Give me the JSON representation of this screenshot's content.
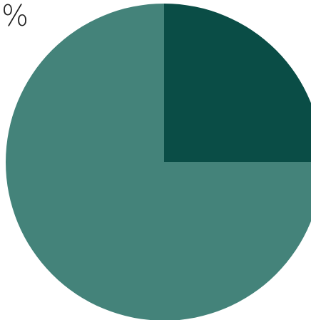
{
  "chart_data": {
    "type": "pie",
    "annotation": "%",
    "categories": [
      null,
      null
    ],
    "values": [
      25,
      75
    ],
    "colors": [
      "#0a4d46",
      "#44837a"
    ]
  }
}
